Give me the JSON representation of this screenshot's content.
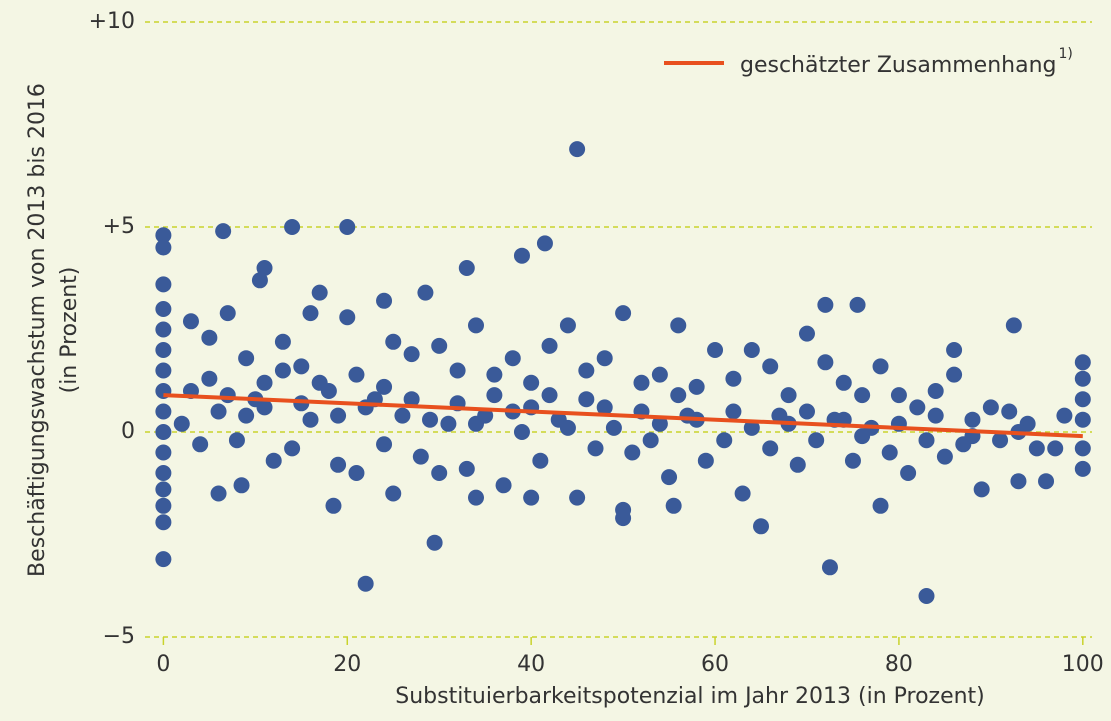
{
  "chart_data": {
    "type": "scatter",
    "xlabel": "Substituierbarkeitspotenzial im Jahr 2013 (in Prozent)",
    "ylabel": [
      "Beschäftigungswachstum von 2013 bis 2016",
      "(in Prozent)"
    ],
    "color": "#3a5a99",
    "x": [
      0,
      0,
      0,
      6.5,
      14,
      20,
      45,
      39,
      41.5,
      33,
      11,
      10.5,
      17,
      24,
      28.5,
      22,
      29.5,
      72.5,
      83,
      65,
      50,
      72,
      75.5,
      92.5,
      86,
      100,
      100,
      96,
      93,
      78,
      18.5,
      6,
      8.5,
      25,
      34,
      40,
      55.5,
      0,
      0,
      0,
      0,
      0,
      0,
      0,
      0,
      0,
      0,
      0,
      0,
      0,
      3,
      5,
      7,
      9,
      11,
      13,
      15,
      16,
      18,
      20,
      21,
      23,
      25,
      27,
      30,
      32,
      34,
      36,
      38,
      40,
      42,
      44,
      46,
      48,
      50,
      52,
      54,
      56,
      58,
      60,
      62,
      64,
      66,
      68,
      70,
      72,
      74,
      76,
      78,
      80,
      82,
      84,
      86,
      88,
      90,
      92,
      94,
      98,
      100,
      100,
      100,
      100,
      2,
      4,
      6,
      8,
      10,
      12,
      14,
      16,
      19,
      21,
      24,
      26,
      28,
      30,
      31,
      33,
      35,
      37,
      39,
      41,
      43,
      45,
      47,
      49,
      50,
      51,
      53,
      55,
      57,
      59,
      61,
      63,
      66,
      67,
      69,
      71,
      73,
      75,
      77,
      79,
      81,
      83,
      85,
      87,
      89,
      91,
      93,
      95,
      97,
      3,
      5,
      7,
      9,
      11,
      13,
      15,
      17,
      19,
      22,
      24,
      27,
      29,
      32,
      34,
      36,
      38,
      40,
      42,
      44,
      46,
      48,
      52,
      54,
      56,
      58,
      62,
      64,
      68,
      70,
      74,
      76,
      80,
      84,
      88
    ],
    "y": [
      -3.1,
      4.8,
      4.5,
      4.9,
      5,
      5,
      6.9,
      4.3,
      4.6,
      4,
      4,
      3.7,
      3.4,
      3.2,
      3.4,
      -3.7,
      -2.7,
      -3.3,
      -4,
      -2.3,
      -2.1,
      3.1,
      3.1,
      2.6,
      2,
      1.7,
      -0.9,
      -1.2,
      -1.2,
      -1.8,
      -1.8,
      -1.5,
      -1.3,
      -1.5,
      -1.6,
      -1.6,
      -1.8,
      -2.2,
      -1.8,
      3.6,
      3,
      2.5,
      2,
      1.5,
      1,
      0.5,
      0,
      -0.5,
      -1,
      -1.4,
      2.7,
      2.3,
      2.9,
      1.8,
      1.2,
      2.2,
      1.6,
      2.9,
      1,
      2.8,
      1.4,
      0.8,
      2.2,
      1.9,
      2.1,
      1.5,
      2.6,
      0.9,
      1.8,
      1.2,
      2.1,
      2.6,
      1.5,
      1.8,
      2.9,
      1.2,
      1.4,
      2.6,
      1.1,
      2,
      1.3,
      2,
      1.6,
      0.9,
      2.4,
      1.7,
      1.2,
      0.9,
      1.6,
      0.9,
      0.6,
      1,
      1.4,
      0.3,
      0.6,
      0.5,
      0.2,
      0.4,
      1.3,
      0.8,
      0.3,
      -0.4,
      0.2,
      -0.3,
      0.5,
      -0.2,
      0.8,
      -0.7,
      -0.4,
      0.3,
      -0.8,
      -1,
      -0.3,
      0.4,
      -0.6,
      -1,
      0.2,
      -0.9,
      0.4,
      -1.3,
      0,
      -0.7,
      0.3,
      -1.6,
      -0.4,
      0.1,
      -1.9,
      -0.5,
      -0.2,
      -1.1,
      0.4,
      -0.7,
      -0.2,
      -1.5,
      -0.4,
      0.4,
      -0.8,
      -0.2,
      0.3,
      -0.7,
      0.1,
      -0.5,
      -1,
      -0.2,
      -0.6,
      -0.3,
      -1.4,
      -0.2,
      0,
      -0.4,
      -0.4,
      1,
      1.3,
      0.9,
      0.4,
      0.6,
      1.5,
      0.7,
      1.2,
      0.4,
      0.6,
      1.1,
      0.8,
      0.3,
      0.7,
      0.2,
      1.4,
      0.5,
      0.6,
      0.9,
      0.1,
      0.8,
      0.6,
      0.5,
      0.2,
      0.9,
      0.3,
      0.5,
      0.1,
      0.2,
      0.5,
      0.3,
      -0.1,
      0.2,
      0.4,
      -0.1
    ],
    "fit": {
      "name": "geschätzter Zusammenhang",
      "note": "1)",
      "color": "#e8501e",
      "x": [
        0,
        100
      ],
      "y": [
        0.9,
        -0.1
      ]
    },
    "xlim": [
      -2,
      101
    ],
    "ylim": [
      -5,
      10
    ],
    "xticks": [
      0,
      20,
      40,
      60,
      80,
      100
    ],
    "yticks": [
      {
        "value": -5,
        "label": "−5"
      },
      0,
      {
        "value": 5,
        "label": "+5"
      },
      {
        "value": 10,
        "label": "+10"
      }
    ],
    "grid": true,
    "legend": "upper right"
  }
}
